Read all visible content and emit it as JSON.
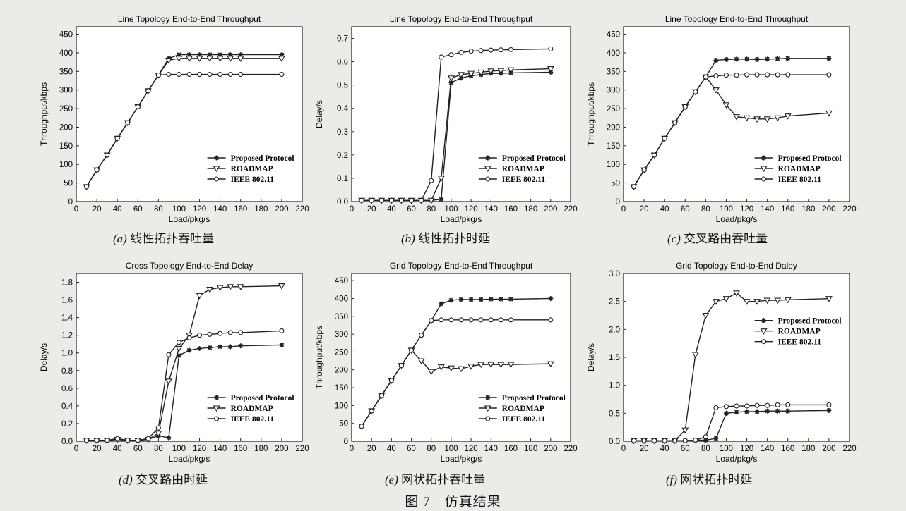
{
  "figure": {
    "number": "图 7",
    "title": "仿真结果"
  },
  "style": {
    "page_bg": "#ecebe8",
    "plot_bg": "#ffffff",
    "line_color": "#222222"
  },
  "panels": [
    {
      "id": "a",
      "caption_label": "(a)",
      "caption_text": "线性拓扑吞吐量"
    },
    {
      "id": "b",
      "caption_label": "(b)",
      "caption_text": "线性拓扑时延"
    },
    {
      "id": "c",
      "caption_label": "(c)",
      "caption_text": "交叉路由吞吐量"
    },
    {
      "id": "d",
      "caption_label": "(d)",
      "caption_text": "交叉路由时延"
    },
    {
      "id": "e",
      "caption_label": "(e)",
      "caption_text": "网状拓扑吞吐量"
    },
    {
      "id": "f",
      "caption_label": "(f)",
      "caption_text": "网状拓扑时延"
    }
  ],
  "chart_data": [
    {
      "type": "line",
      "title": "Line Topology End-to-End Throughput",
      "xlabel": "Load/pkg/s",
      "ylabel": "Throughput/kbps",
      "xlim": [
        0,
        220
      ],
      "ylim": [
        0,
        470
      ],
      "xticks": [
        0,
        20,
        40,
        60,
        80,
        100,
        120,
        140,
        160,
        180,
        200,
        220
      ],
      "yticks": [
        0,
        50,
        100,
        150,
        200,
        250,
        300,
        350,
        400,
        450
      ],
      "yfmt": 0,
      "legend": {
        "position": "bottom-right",
        "entries": [
          "Proposed Protocol",
          "ROADMAP",
          "IEEE 802.11"
        ]
      },
      "series": [
        {
          "name": "Proposed Protocol",
          "marker": "star",
          "x": [
            10,
            20,
            30,
            40,
            50,
            60,
            70,
            80,
            90,
            100,
            110,
            120,
            130,
            140,
            150,
            160,
            200
          ],
          "y": [
            40,
            85,
            125,
            170,
            212,
            255,
            298,
            340,
            385,
            395,
            395,
            395,
            395,
            395,
            395,
            395,
            395
          ]
        },
        {
          "name": "ROADMAP",
          "marker": "tri",
          "x": [
            10,
            20,
            30,
            40,
            50,
            60,
            70,
            80,
            90,
            100,
            110,
            120,
            130,
            140,
            150,
            160,
            200
          ],
          "y": [
            40,
            85,
            125,
            170,
            212,
            255,
            298,
            340,
            380,
            385,
            385,
            385,
            385,
            385,
            385,
            385,
            385
          ]
        },
        {
          "name": "IEEE 802.11",
          "marker": "circle",
          "x": [
            10,
            20,
            30,
            40,
            50,
            60,
            70,
            80,
            90,
            100,
            110,
            120,
            130,
            140,
            150,
            160,
            200
          ],
          "y": [
            40,
            85,
            125,
            170,
            212,
            255,
            298,
            340,
            342,
            342,
            342,
            342,
            342,
            342,
            342,
            342,
            342
          ]
        }
      ]
    },
    {
      "type": "line",
      "title": "Line Topology End-to-End Throughput",
      "xlabel": "Load/pkg/s",
      "ylabel": "Delay/s",
      "xlim": [
        0,
        220
      ],
      "ylim": [
        0,
        0.75
      ],
      "xticks": [
        0,
        20,
        40,
        60,
        80,
        100,
        120,
        140,
        160,
        180,
        200,
        220
      ],
      "yticks": [
        0,
        0.1,
        0.2,
        0.3,
        0.4,
        0.5,
        0.6,
        0.7
      ],
      "yfmt": 1,
      "legend": {
        "position": "bottom-right",
        "entries": [
          "Proposed Protocol",
          "ROADMAP",
          "IEEE 802.11"
        ]
      },
      "series": [
        {
          "name": "Proposed Protocol",
          "marker": "star",
          "x": [
            10,
            20,
            30,
            40,
            50,
            60,
            70,
            80,
            90,
            100,
            110,
            120,
            130,
            140,
            150,
            160,
            200
          ],
          "y": [
            0.005,
            0.005,
            0.005,
            0.005,
            0.005,
            0.005,
            0.005,
            0.005,
            0.01,
            0.51,
            0.53,
            0.54,
            0.545,
            0.55,
            0.55,
            0.552,
            0.555
          ]
        },
        {
          "name": "ROADMAP",
          "marker": "tri",
          "x": [
            10,
            20,
            30,
            40,
            50,
            60,
            70,
            80,
            90,
            100,
            110,
            120,
            130,
            140,
            150,
            160,
            200
          ],
          "y": [
            0.005,
            0.005,
            0.005,
            0.005,
            0.005,
            0.005,
            0.005,
            0.005,
            0.1,
            0.53,
            0.545,
            0.55,
            0.555,
            0.56,
            0.562,
            0.565,
            0.57
          ]
        },
        {
          "name": "IEEE 802.11",
          "marker": "circle",
          "x": [
            10,
            20,
            30,
            40,
            50,
            60,
            70,
            80,
            90,
            100,
            110,
            120,
            130,
            140,
            150,
            160,
            200
          ],
          "y": [
            0.005,
            0.005,
            0.005,
            0.005,
            0.005,
            0.005,
            0.005,
            0.09,
            0.62,
            0.63,
            0.64,
            0.645,
            0.648,
            0.65,
            0.651,
            0.652,
            0.655
          ]
        }
      ]
    },
    {
      "type": "line",
      "title": "Line Topology End-to-End Throughput",
      "xlabel": "Load/pkg/s",
      "ylabel": "Throughput/kbps",
      "xlim": [
        0,
        220
      ],
      "ylim": [
        0,
        470
      ],
      "xticks": [
        0,
        20,
        40,
        60,
        80,
        100,
        120,
        140,
        160,
        180,
        200,
        220
      ],
      "yticks": [
        0,
        50,
        100,
        150,
        200,
        250,
        300,
        350,
        400,
        450
      ],
      "yfmt": 0,
      "legend": {
        "position": "bottom-right",
        "entries": [
          "Proposed Protocol",
          "ROADMAP",
          "IEEE 802.11"
        ]
      },
      "series": [
        {
          "name": "Proposed Protocol",
          "marker": "star",
          "x": [
            10,
            20,
            30,
            40,
            50,
            60,
            70,
            80,
            90,
            100,
            110,
            120,
            130,
            140,
            150,
            160,
            200
          ],
          "y": [
            40,
            85,
            125,
            170,
            212,
            255,
            295,
            335,
            380,
            382,
            383,
            383,
            382,
            383,
            384,
            385,
            385
          ]
        },
        {
          "name": "ROADMAP",
          "marker": "tri",
          "x": [
            10,
            20,
            30,
            40,
            50,
            60,
            70,
            80,
            90,
            100,
            110,
            120,
            130,
            140,
            150,
            160,
            200
          ],
          "y": [
            40,
            85,
            125,
            170,
            212,
            255,
            295,
            335,
            300,
            260,
            228,
            225,
            222,
            222,
            225,
            230,
            238
          ]
        },
        {
          "name": "IEEE 802.11",
          "marker": "circle",
          "x": [
            10,
            20,
            30,
            40,
            50,
            60,
            70,
            80,
            90,
            100,
            110,
            120,
            130,
            140,
            150,
            160,
            200
          ],
          "y": [
            40,
            85,
            125,
            170,
            212,
            255,
            295,
            335,
            338,
            340,
            340,
            341,
            341,
            341,
            341,
            341,
            341
          ]
        }
      ]
    },
    {
      "type": "line",
      "title": "Cross Topology End-to-End Delay",
      "xlabel": "Load/pkg/s",
      "ylabel": "Delay/s",
      "xlim": [
        0,
        220
      ],
      "ylim": [
        0,
        1.9
      ],
      "xticks": [
        0,
        20,
        40,
        60,
        80,
        100,
        120,
        140,
        160,
        180,
        200,
        220
      ],
      "yticks": [
        0,
        0.2,
        0.4,
        0.6,
        0.8,
        1.0,
        1.2,
        1.4,
        1.6,
        1.8
      ],
      "yfmt": 1,
      "legend": {
        "position": "bottom-right",
        "entries": [
          "Proposed Protocol",
          "ROADMAP",
          "IEEE 802.11"
        ]
      },
      "series": [
        {
          "name": "Proposed Protocol",
          "marker": "star",
          "x": [
            10,
            20,
            30,
            40,
            50,
            60,
            70,
            80,
            90,
            100,
            110,
            120,
            130,
            140,
            150,
            160,
            200
          ],
          "y": [
            0.01,
            0.01,
            0.01,
            0.02,
            0.01,
            0.01,
            0.02,
            0.06,
            0.04,
            0.97,
            1.03,
            1.05,
            1.06,
            1.07,
            1.07,
            1.08,
            1.09
          ]
        },
        {
          "name": "ROADMAP",
          "marker": "tri",
          "x": [
            10,
            20,
            30,
            40,
            50,
            60,
            70,
            80,
            90,
            100,
            110,
            120,
            130,
            140,
            150,
            160,
            200
          ],
          "y": [
            0.01,
            0.01,
            0.01,
            0.02,
            0.01,
            0.01,
            0.02,
            0.09,
            0.68,
            1.05,
            1.2,
            1.65,
            1.72,
            1.74,
            1.75,
            1.75,
            1.76
          ]
        },
        {
          "name": "IEEE 802.11",
          "marker": "circle",
          "x": [
            10,
            20,
            30,
            40,
            50,
            60,
            70,
            80,
            90,
            100,
            110,
            120,
            130,
            140,
            150,
            160,
            200
          ],
          "y": [
            0.01,
            0.01,
            0.01,
            0.03,
            0.01,
            0.01,
            0.03,
            0.15,
            0.98,
            1.12,
            1.17,
            1.2,
            1.21,
            1.22,
            1.23,
            1.23,
            1.25
          ]
        }
      ]
    },
    {
      "type": "line",
      "title": "Grid Topology End-to-End Throughput",
      "xlabel": "Load/pkg/s",
      "ylabel": "Throughput/kbps",
      "xlim": [
        0,
        220
      ],
      "ylim": [
        0,
        470
      ],
      "xticks": [
        0,
        20,
        40,
        60,
        80,
        100,
        120,
        140,
        160,
        180,
        200,
        220
      ],
      "yticks": [
        0,
        50,
        100,
        150,
        200,
        250,
        300,
        350,
        400,
        450
      ],
      "yfmt": 0,
      "legend": {
        "position": "bottom-right",
        "entries": [
          "Proposed Protocol",
          "ROADMAP",
          "IEEE 802.11"
        ]
      },
      "series": [
        {
          "name": "Proposed Protocol",
          "marker": "star",
          "x": [
            10,
            20,
            30,
            40,
            50,
            60,
            70,
            80,
            90,
            100,
            110,
            120,
            130,
            140,
            150,
            160,
            200
          ],
          "y": [
            42,
            85,
            128,
            170,
            212,
            255,
            297,
            338,
            385,
            395,
            397,
            397,
            397,
            398,
            398,
            398,
            400
          ]
        },
        {
          "name": "ROADMAP",
          "marker": "tri",
          "x": [
            10,
            20,
            30,
            40,
            50,
            60,
            70,
            80,
            90,
            100,
            110,
            120,
            130,
            140,
            150,
            160,
            200
          ],
          "y": [
            42,
            85,
            128,
            170,
            212,
            255,
            225,
            195,
            208,
            205,
            203,
            210,
            215,
            215,
            215,
            215,
            217
          ]
        },
        {
          "name": "IEEE 802.11",
          "marker": "circle",
          "x": [
            10,
            20,
            30,
            40,
            50,
            60,
            70,
            80,
            90,
            100,
            110,
            120,
            130,
            140,
            150,
            160,
            200
          ],
          "y": [
            42,
            85,
            128,
            170,
            212,
            255,
            297,
            338,
            340,
            340,
            340,
            340,
            340,
            340,
            340,
            340,
            340
          ]
        }
      ]
    },
    {
      "type": "line",
      "title": "Grid Topology End-to-End Daley",
      "xlabel": "Load/pkg/s",
      "ylabel": "Delay/s",
      "xlim": [
        0,
        220
      ],
      "ylim": [
        0,
        3.0
      ],
      "xticks": [
        0,
        20,
        40,
        60,
        80,
        100,
        120,
        140,
        160,
        180,
        200,
        220
      ],
      "yticks": [
        0,
        0.5,
        1.0,
        1.5,
        2.0,
        2.5,
        3.0
      ],
      "yfmt": 1,
      "legend": {
        "position": "top-right",
        "entries": [
          "Proposed Protocol",
          "ROADMAP",
          "IEEE 802.11"
        ]
      },
      "series": [
        {
          "name": "Proposed Protocol",
          "marker": "star",
          "x": [
            10,
            20,
            30,
            40,
            50,
            60,
            70,
            80,
            90,
            100,
            110,
            120,
            130,
            140,
            150,
            160,
            200
          ],
          "y": [
            0.01,
            0.01,
            0.01,
            0.01,
            0.01,
            0.01,
            0.02,
            0.02,
            0.05,
            0.5,
            0.52,
            0.53,
            0.53,
            0.54,
            0.54,
            0.54,
            0.55
          ]
        },
        {
          "name": "ROADMAP",
          "marker": "tri",
          "x": [
            10,
            20,
            30,
            40,
            50,
            60,
            70,
            80,
            90,
            100,
            110,
            120,
            130,
            140,
            150,
            160,
            200
          ],
          "y": [
            0.01,
            0.01,
            0.01,
            0.01,
            0.01,
            0.2,
            1.55,
            2.25,
            2.5,
            2.55,
            2.65,
            2.5,
            2.5,
            2.52,
            2.52,
            2.53,
            2.55
          ]
        },
        {
          "name": "IEEE 802.11",
          "marker": "circle",
          "x": [
            10,
            20,
            30,
            40,
            50,
            60,
            70,
            80,
            90,
            100,
            110,
            120,
            130,
            140,
            150,
            160,
            200
          ],
          "y": [
            0.01,
            0.01,
            0.01,
            0.01,
            0.01,
            0.01,
            0.02,
            0.08,
            0.6,
            0.62,
            0.63,
            0.63,
            0.64,
            0.64,
            0.65,
            0.65,
            0.65
          ]
        }
      ]
    }
  ]
}
